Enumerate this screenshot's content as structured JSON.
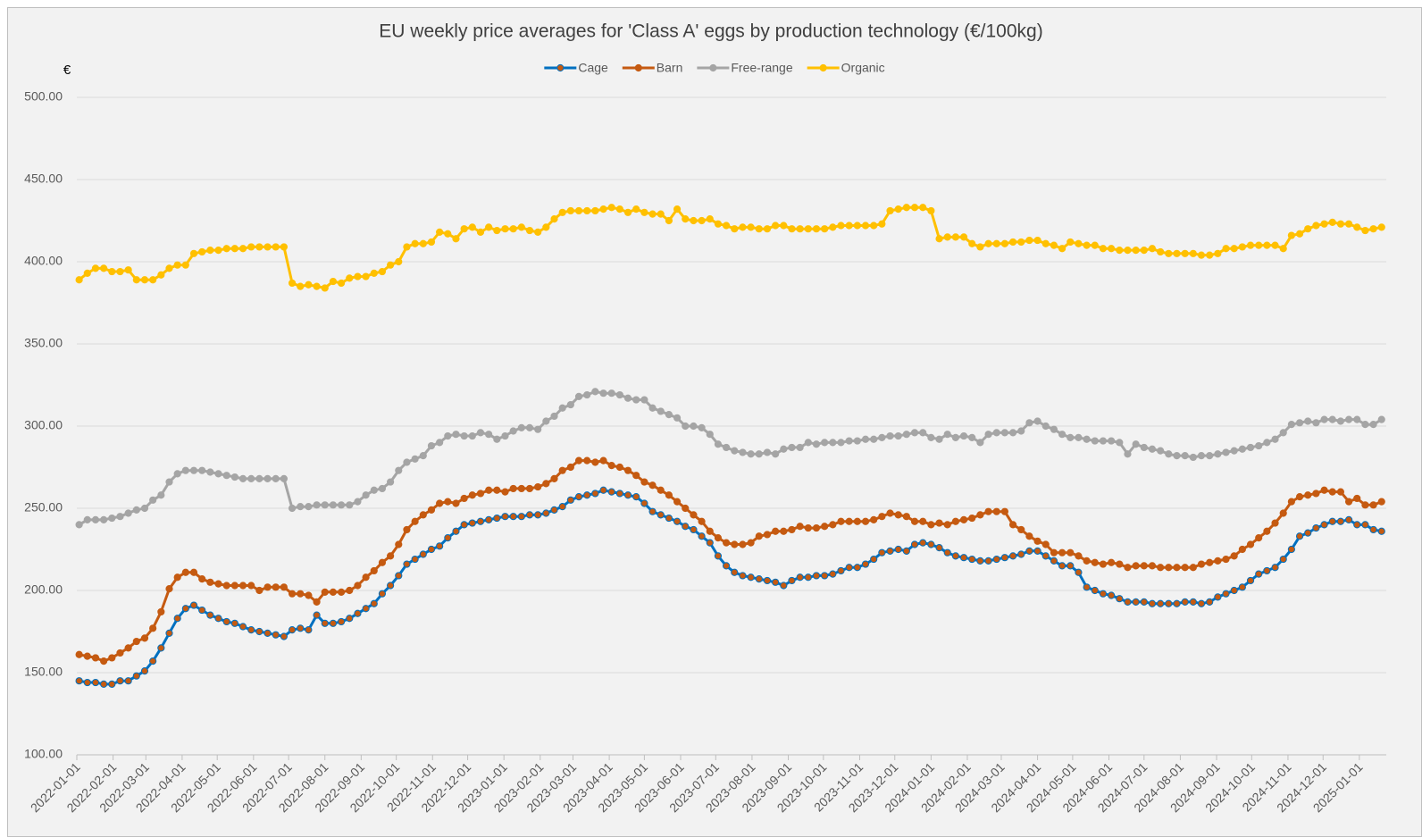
{
  "chart_data": {
    "type": "line",
    "title": "EU weekly price averages for 'Class A' eggs by production technology (€/100kg)",
    "y_unit": "€",
    "legend": "top",
    "grid": true,
    "ylim": [
      100,
      500
    ],
    "yticks": [
      {
        "value": 100,
        "label": "100.00"
      },
      {
        "value": 150,
        "label": "150.00"
      },
      {
        "value": 200,
        "label": "200.00"
      },
      {
        "value": 250,
        "label": "250.00"
      },
      {
        "value": 300,
        "label": "300.00"
      },
      {
        "value": 350,
        "label": "350.00"
      },
      {
        "value": 400,
        "label": "400.00"
      },
      {
        "value": 450,
        "label": "450.00"
      },
      {
        "value": 500,
        "label": "500.00"
      }
    ],
    "xlim": [
      "2022-01-01",
      "2025-01-24"
    ],
    "xticks": [
      "2022-01-01",
      "2022-02-01",
      "2022-03-01",
      "2022-04-01",
      "2022-05-01",
      "2022-06-01",
      "2022-07-01",
      "2022-08-01",
      "2022-09-01",
      "2022-10-01",
      "2022-11-01",
      "2022-12-01",
      "2023-01-01",
      "2023-02-01",
      "2023-03-01",
      "2023-04-01",
      "2023-05-01",
      "2023-06-01",
      "2023-07-01",
      "2023-08-01",
      "2023-09-01",
      "2023-10-01",
      "2023-11-01",
      "2023-12-01",
      "2024-01-01",
      "2024-02-01",
      "2024-03-01",
      "2024-04-01",
      "2024-05-01",
      "2024-06-01",
      "2024-07-01",
      "2024-08-01",
      "2024-09-01",
      "2024-10-01",
      "2024-11-01",
      "2024-12-01",
      "2025-01-01"
    ],
    "x": [
      "2022-01-03",
      "2022-01-10",
      "2022-01-17",
      "2022-01-24",
      "2022-01-31",
      "2022-02-07",
      "2022-02-14",
      "2022-02-21",
      "2022-02-28",
      "2022-03-07",
      "2022-03-14",
      "2022-03-21",
      "2022-03-28",
      "2022-04-04",
      "2022-04-11",
      "2022-04-18",
      "2022-04-25",
      "2022-05-02",
      "2022-05-09",
      "2022-05-16",
      "2022-05-23",
      "2022-05-30",
      "2022-06-06",
      "2022-06-13",
      "2022-06-20",
      "2022-06-27",
      "2022-07-04",
      "2022-07-11",
      "2022-07-18",
      "2022-07-25",
      "2022-08-01",
      "2022-08-08",
      "2022-08-15",
      "2022-08-22",
      "2022-08-29",
      "2022-09-05",
      "2022-09-12",
      "2022-09-19",
      "2022-09-26",
      "2022-10-03",
      "2022-10-10",
      "2022-10-17",
      "2022-10-24",
      "2022-10-31",
      "2022-11-07",
      "2022-11-14",
      "2022-11-21",
      "2022-11-28",
      "2022-12-05",
      "2022-12-12",
      "2022-12-19",
      "2022-12-26",
      "2023-01-02",
      "2023-01-09",
      "2023-01-16",
      "2023-01-23",
      "2023-01-30",
      "2023-02-06",
      "2023-02-13",
      "2023-02-20",
      "2023-02-27",
      "2023-03-06",
      "2023-03-13",
      "2023-03-20",
      "2023-03-27",
      "2023-04-03",
      "2023-04-10",
      "2023-04-17",
      "2023-04-24",
      "2023-05-01",
      "2023-05-08",
      "2023-05-15",
      "2023-05-22",
      "2023-05-29",
      "2023-06-05",
      "2023-06-12",
      "2023-06-19",
      "2023-06-26",
      "2023-07-03",
      "2023-07-10",
      "2023-07-17",
      "2023-07-24",
      "2023-07-31",
      "2023-08-07",
      "2023-08-14",
      "2023-08-21",
      "2023-08-28",
      "2023-09-04",
      "2023-09-11",
      "2023-09-18",
      "2023-09-25",
      "2023-10-02",
      "2023-10-09",
      "2023-10-16",
      "2023-10-23",
      "2023-10-30",
      "2023-11-06",
      "2023-11-13",
      "2023-11-20",
      "2023-11-27",
      "2023-12-04",
      "2023-12-11",
      "2023-12-18",
      "2023-12-25",
      "2024-01-01",
      "2024-01-08",
      "2024-01-15",
      "2024-01-22",
      "2024-01-29",
      "2024-02-05",
      "2024-02-12",
      "2024-02-19",
      "2024-02-26",
      "2024-03-04",
      "2024-03-11",
      "2024-03-18",
      "2024-03-25",
      "2024-04-01",
      "2024-04-08",
      "2024-04-15",
      "2024-04-22",
      "2024-04-29",
      "2024-05-06",
      "2024-05-13",
      "2024-05-20",
      "2024-05-27",
      "2024-06-03",
      "2024-06-10",
      "2024-06-17",
      "2024-06-24",
      "2024-07-01",
      "2024-07-08",
      "2024-07-15",
      "2024-07-22",
      "2024-07-29",
      "2024-08-05",
      "2024-08-12",
      "2024-08-19",
      "2024-08-26",
      "2024-09-02",
      "2024-09-09",
      "2024-09-16",
      "2024-09-23",
      "2024-09-30",
      "2024-10-07",
      "2024-10-14",
      "2024-10-21",
      "2024-10-28",
      "2024-11-04",
      "2024-11-11",
      "2024-11-18",
      "2024-11-25",
      "2024-12-02",
      "2024-12-09",
      "2024-12-16",
      "2024-12-23",
      "2024-12-30",
      "2025-01-06",
      "2025-01-13",
      "2025-01-20"
    ],
    "series": [
      {
        "name": "Cage",
        "color": "#0070c0",
        "marker_color": "#c55a11",
        "values": [
          145,
          144,
          144,
          143,
          143,
          145,
          145,
          148,
          151,
          157,
          165,
          174,
          183,
          189,
          191,
          188,
          185,
          183,
          181,
          180,
          178,
          176,
          175,
          174,
          173,
          172,
          176,
          177,
          176,
          185,
          180,
          180,
          181,
          183,
          186,
          189,
          192,
          198,
          203,
          209,
          216,
          219,
          222,
          225,
          227,
          232,
          236,
          240,
          241,
          242,
          243,
          244,
          245,
          245,
          245,
          246,
          246,
          247,
          249,
          251,
          255,
          257,
          258,
          259,
          261,
          260,
          259,
          258,
          257,
          253,
          248,
          246,
          244,
          242,
          239,
          237,
          233,
          229,
          221,
          215,
          211,
          209,
          208,
          207,
          206,
          205,
          203,
          206,
          208,
          208,
          209,
          209,
          210,
          212,
          214,
          214,
          216,
          219,
          223,
          224,
          225,
          224,
          228,
          229,
          228,
          226,
          223,
          221,
          220,
          219,
          218,
          218,
          219,
          220,
          221,
          222,
          224,
          224,
          221,
          218,
          215,
          215,
          211,
          202,
          200,
          198,
          197,
          195,
          193,
          193,
          193,
          192,
          192,
          192,
          192,
          193,
          193,
          192,
          193,
          196,
          198,
          200,
          202,
          206,
          210,
          212,
          214,
          219,
          225,
          233,
          235,
          238,
          240,
          242,
          242,
          243,
          240,
          240,
          237,
          236
        ]
      },
      {
        "name": "Barn",
        "color": "#c55a11",
        "values": [
          161,
          160,
          159,
          157,
          159,
          162,
          165,
          169,
          171,
          177,
          187,
          201,
          208,
          211,
          211,
          207,
          205,
          204,
          203,
          203,
          203,
          203,
          200,
          202,
          202,
          202,
          198,
          198,
          197,
          193,
          199,
          199,
          199,
          200,
          203,
          208,
          212,
          217,
          221,
          228,
          237,
          242,
          246,
          249,
          253,
          254,
          253,
          256,
          258,
          259,
          261,
          261,
          260,
          262,
          262,
          262,
          263,
          265,
          268,
          273,
          275,
          279,
          279,
          278,
          279,
          276,
          275,
          273,
          270,
          266,
          264,
          261,
          258,
          254,
          250,
          246,
          242,
          236,
          232,
          229,
          228,
          228,
          229,
          233,
          234,
          236,
          236,
          237,
          239,
          238,
          238,
          239,
          240,
          242,
          242,
          242,
          242,
          243,
          245,
          247,
          246,
          245,
          242,
          242,
          240,
          241,
          240,
          242,
          243,
          244,
          246,
          248,
          248,
          248,
          240,
          237,
          233,
          230,
          228,
          223,
          223,
          223,
          221,
          218,
          217,
          216,
          217,
          216,
          214,
          215,
          215,
          215,
          214,
          214,
          214,
          214,
          214,
          216,
          217,
          218,
          219,
          221,
          225,
          228,
          232,
          236,
          241,
          247,
          254,
          257,
          258,
          259,
          261,
          260,
          260,
          254,
          256,
          252,
          252,
          254
        ]
      },
      {
        "name": "Free-range",
        "color": "#a5a5a5",
        "values": [
          240,
          243,
          243,
          243,
          244,
          245,
          247,
          249,
          250,
          255,
          258,
          266,
          271,
          273,
          273,
          273,
          272,
          271,
          270,
          269,
          268,
          268,
          268,
          268,
          268,
          268,
          250,
          251,
          251,
          252,
          252,
          252,
          252,
          252,
          254,
          258,
          261,
          262,
          266,
          273,
          278,
          280,
          282,
          288,
          290,
          294,
          295,
          294,
          294,
          296,
          295,
          292,
          294,
          297,
          299,
          299,
          298,
          303,
          306,
          311,
          313,
          318,
          319,
          321,
          320,
          320,
          319,
          317,
          316,
          316,
          311,
          309,
          307,
          305,
          300,
          300,
          299,
          295,
          289,
          287,
          285,
          284,
          283,
          283,
          284,
          283,
          286,
          287,
          287,
          290,
          289,
          290,
          290,
          290,
          291,
          291,
          292,
          292,
          293,
          294,
          294,
          295,
          296,
          296,
          293,
          292,
          295,
          293,
          294,
          293,
          290,
          295,
          296,
          296,
          296,
          297,
          302,
          303,
          300,
          298,
          295,
          293,
          293,
          292,
          291,
          291,
          291,
          290,
          283,
          289,
          287,
          286,
          285,
          283,
          282,
          282,
          281,
          282,
          282,
          283,
          284,
          285,
          286,
          287,
          288,
          290,
          292,
          296,
          301,
          302,
          303,
          302,
          304,
          304,
          303,
          304,
          304,
          301,
          301,
          304
        ]
      },
      {
        "name": "Organic",
        "color": "#ffc000",
        "values": [
          389,
          393,
          396,
          396,
          394,
          394,
          395,
          389,
          389,
          389,
          392,
          396,
          398,
          398,
          405,
          406,
          407,
          407,
          408,
          408,
          408,
          409,
          409,
          409,
          409,
          409,
          387,
          385,
          386,
          385,
          384,
          388,
          387,
          390,
          391,
          391,
          393,
          394,
          398,
          400,
          409,
          411,
          411,
          412,
          418,
          417,
          414,
          420,
          421,
          418,
          421,
          419,
          420,
          420,
          421,
          419,
          418,
          421,
          426,
          430,
          431,
          431,
          431,
          431,
          432,
          433,
          432,
          430,
          432,
          430,
          429,
          429,
          425,
          432,
          426,
          425,
          425,
          426,
          423,
          422,
          420,
          421,
          421,
          420,
          420,
          422,
          422,
          420,
          420,
          420,
          420,
          420,
          421,
          422,
          422,
          422,
          422,
          422,
          423,
          431,
          432,
          433,
          433,
          433,
          431,
          414,
          415,
          415,
          415,
          411,
          409,
          411,
          411,
          411,
          412,
          412,
          413,
          413,
          411,
          410,
          408,
          412,
          411,
          410,
          410,
          408,
          408,
          407,
          407,
          407,
          407,
          408,
          406,
          405,
          405,
          405,
          405,
          404,
          404,
          405,
          408,
          408,
          409,
          410,
          410,
          410,
          410,
          408,
          416,
          417,
          420,
          422,
          423,
          424,
          423,
          423,
          421,
          419,
          420,
          421
        ]
      }
    ]
  }
}
